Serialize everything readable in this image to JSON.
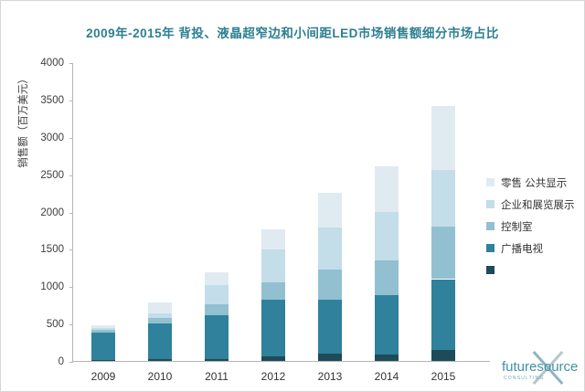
{
  "title": "2009年-2015年 背投、液晶超窄边和小间距LED市场销售额细分市场占比",
  "chart_data": {
    "type": "bar",
    "stacked": true,
    "stack_order": "bottom-to-top",
    "title": "2009年-2015年 背投、液晶超窄边和小间距LED市场销售额细分市场占比",
    "categories": [
      "2009",
      "2010",
      "2011",
      "2012",
      "2013",
      "2014",
      "2015"
    ],
    "series": [
      {
        "name": "",
        "color": "#1d4b58",
        "values": [
          15,
          25,
          25,
          60,
          100,
          85,
          145
        ]
      },
      {
        "name": "广播电视",
        "color": "#2f819c",
        "values": [
          365,
          475,
          585,
          755,
          720,
          790,
          950
        ]
      },
      {
        "name": "控制室",
        "color": "#92c0d0",
        "values": [
          35,
          75,
          145,
          240,
          400,
          475,
          705
        ]
      },
      {
        "name": "企业和展览展示",
        "color": "#c3dde9",
        "values": [
          25,
          60,
          265,
          440,
          570,
          645,
          755
        ]
      },
      {
        "name": "零售 公共显示",
        "color": "#e0ebf1",
        "values": [
          40,
          145,
          170,
          270,
          460,
          610,
          855
        ]
      }
    ],
    "totals": [
      480,
      780,
      1190,
      1765,
      2250,
      2605,
      3410
    ],
    "xlabel": "",
    "ylabel": "销售额（百万美元）",
    "ylim": [
      0,
      4000
    ],
    "ytick_step": 500,
    "grid": false,
    "legend_position": "right",
    "legend_order_top_to_bottom": [
      "零售 公共显示",
      "企业和展览展示",
      "控制室",
      "广播电视",
      ""
    ]
  },
  "logo": {
    "name": "futuresource",
    "sub": "CONSULTING"
  },
  "colors": {
    "title_text": "#2d7f91",
    "axis_line": "#b5b5b5",
    "tick_text": "#3d3d3d",
    "logo_text": "#3f92a8"
  }
}
